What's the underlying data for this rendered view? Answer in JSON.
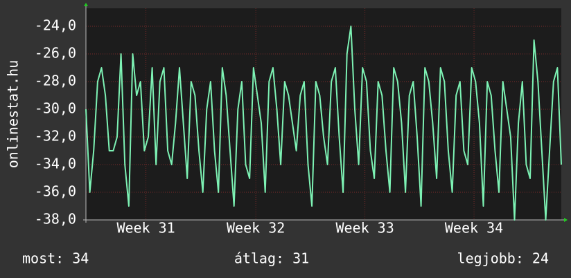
{
  "chart_data": {
    "type": "line",
    "ylabel": "onlinestat.hu",
    "color": "#7df2b4",
    "values": [
      -30,
      -36,
      -33,
      -28,
      -27,
      -29,
      -33,
      -33,
      -32,
      -26,
      -34,
      -37,
      -26,
      -29,
      -28,
      -33,
      -32,
      -27,
      -34,
      -28,
      -27,
      -33,
      -34,
      -31,
      -27,
      -31,
      -35,
      -28,
      -29,
      -33,
      -36,
      -30,
      -28,
      -33,
      -36,
      -27,
      -29,
      -33,
      -37,
      -30,
      -28,
      -34,
      -35,
      -27,
      -29,
      -31,
      -36,
      -28,
      -27,
      -30,
      -34,
      -28,
      -29,
      -31,
      -33,
      -29,
      -28,
      -34,
      -37,
      -28,
      -29,
      -32,
      -34,
      -28,
      -27,
      -32,
      -36,
      -26,
      -24,
      -30,
      -34,
      -27,
      -28,
      -33,
      -35,
      -28,
      -29,
      -33,
      -36,
      -27,
      -28,
      -31,
      -36,
      -29,
      -28,
      -32,
      -37,
      -27,
      -28,
      -31,
      -35,
      -27,
      -28,
      -33,
      -36,
      -29,
      -28,
      -33,
      -34,
      -27,
      -28,
      -31,
      -37,
      -28,
      -29,
      -33,
      -36,
      -28,
      -30,
      -32,
      -38,
      -31,
      -28,
      -34,
      -35,
      -25,
      -28,
      -33,
      -38,
      -33,
      -28,
      -27,
      -34
    ],
    "ylim": [
      -38,
      -22.7
    ],
    "yticks": [
      {
        "value": -38,
        "label": "-38,0"
      },
      {
        "value": -36,
        "label": "-36,0"
      },
      {
        "value": -34,
        "label": "-34,0"
      },
      {
        "value": -32,
        "label": "-32,0"
      },
      {
        "value": -30,
        "label": "-30,0"
      },
      {
        "value": -28,
        "label": "-28,0"
      },
      {
        "value": -26,
        "label": "-26,0"
      },
      {
        "value": -24,
        "label": "-24,0"
      }
    ],
    "xlim": [
      0,
      122
    ],
    "xticks": [
      {
        "value": 15.4,
        "label": "Week 31"
      },
      {
        "value": 43.6,
        "label": "Week 32"
      },
      {
        "value": 71.6,
        "label": "Week 33"
      },
      {
        "value": 99.6,
        "label": "Week 34"
      }
    ],
    "grid": true,
    "footer": {
      "current": "most: 34",
      "average": "átlag: 31",
      "best": "legjobb: 24"
    }
  }
}
